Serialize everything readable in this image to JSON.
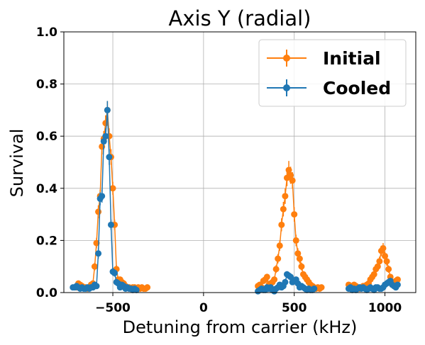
{
  "chart_data": {
    "type": "scatter",
    "title": "Axis Y (radial)",
    "xlabel": "Detuning from carrier (kHz)",
    "ylabel": "Survival",
    "xlim": [
      -770,
      1170
    ],
    "ylim": [
      0,
      1.0
    ],
    "xticks": [
      -500,
      0,
      500,
      1000
    ],
    "xtick_labels": [
      "−500",
      "0",
      "500",
      "1000"
    ],
    "yticks": [
      0,
      0.2,
      0.4,
      0.6,
      0.8,
      1.0
    ],
    "ytick_labels": [
      "0.0",
      "0.2",
      "0.4",
      "0.6",
      "0.8",
      "1.0"
    ],
    "grid": true,
    "legend_position": "top-right",
    "series": [
      {
        "name": "Initial",
        "color": "#ff7f0e",
        "points": [
          [
            -700,
            0.02,
            0.006
          ],
          [
            -690,
            0.035,
            0.008
          ],
          [
            -680,
            0.03,
            0.008
          ],
          [
            -670,
            0.025,
            0.007
          ],
          [
            -660,
            0.02,
            0.006
          ],
          [
            -650,
            0.02,
            0.006
          ],
          [
            -640,
            0.015,
            0.005
          ],
          [
            -630,
            0.02,
            0.006
          ],
          [
            -620,
            0.03,
            0.008
          ],
          [
            -610,
            0.035,
            0.008
          ],
          [
            -600,
            0.1,
            0.015
          ],
          [
            -590,
            0.19,
            0.02
          ],
          [
            -580,
            0.31,
            0.025
          ],
          [
            -570,
            0.37,
            0.025
          ],
          [
            -560,
            0.56,
            0.03
          ],
          [
            -550,
            0.59,
            0.03
          ],
          [
            -540,
            0.65,
            0.03
          ],
          [
            -530,
            0.7,
            0.035
          ],
          [
            -520,
            0.6,
            0.03
          ],
          [
            -510,
            0.52,
            0.03
          ],
          [
            -500,
            0.4,
            0.025
          ],
          [
            -490,
            0.26,
            0.02
          ],
          [
            -480,
            0.09,
            0.015
          ],
          [
            -470,
            0.05,
            0.01
          ],
          [
            -460,
            0.05,
            0.01
          ],
          [
            -450,
            0.04,
            0.008
          ],
          [
            -440,
            0.035,
            0.008
          ],
          [
            -430,
            0.025,
            0.007
          ],
          [
            -420,
            0.02,
            0.006
          ],
          [
            -410,
            0.02,
            0.006
          ],
          [
            -400,
            0.015,
            0.005
          ],
          [
            -390,
            0.02,
            0.006
          ],
          [
            -380,
            0.02,
            0.006
          ],
          [
            -370,
            0.015,
            0.005
          ],
          [
            -360,
            0.02,
            0.006
          ],
          [
            -350,
            0.015,
            0.005
          ],
          [
            -340,
            0.02,
            0.006
          ],
          [
            -330,
            0.015,
            0.005
          ],
          [
            -320,
            0.015,
            0.005
          ],
          [
            -310,
            0.02,
            0.006
          ],
          [
            300,
            0.025,
            0.007
          ],
          [
            310,
            0.03,
            0.008
          ],
          [
            320,
            0.02,
            0.006
          ],
          [
            330,
            0.045,
            0.01
          ],
          [
            340,
            0.05,
            0.01
          ],
          [
            350,
            0.06,
            0.012
          ],
          [
            360,
            0.03,
            0.008
          ],
          [
            370,
            0.035,
            0.008
          ],
          [
            380,
            0.04,
            0.009
          ],
          [
            390,
            0.05,
            0.01
          ],
          [
            400,
            0.09,
            0.015
          ],
          [
            410,
            0.13,
            0.018
          ],
          [
            420,
            0.18,
            0.02
          ],
          [
            430,
            0.26,
            0.025
          ],
          [
            440,
            0.32,
            0.028
          ],
          [
            450,
            0.37,
            0.03
          ],
          [
            460,
            0.44,
            0.032
          ],
          [
            470,
            0.47,
            0.035
          ],
          [
            480,
            0.45,
            0.033
          ],
          [
            490,
            0.43,
            0.032
          ],
          [
            500,
            0.3,
            0.028
          ],
          [
            510,
            0.2,
            0.022
          ],
          [
            520,
            0.15,
            0.02
          ],
          [
            530,
            0.13,
            0.018
          ],
          [
            540,
            0.1,
            0.015
          ],
          [
            550,
            0.07,
            0.012
          ],
          [
            560,
            0.06,
            0.012
          ],
          [
            570,
            0.05,
            0.01
          ],
          [
            580,
            0.04,
            0.009
          ],
          [
            590,
            0.03,
            0.008
          ],
          [
            600,
            0.025,
            0.007
          ],
          [
            610,
            0.02,
            0.006
          ],
          [
            620,
            0.015,
            0.005
          ],
          [
            630,
            0.02,
            0.006
          ],
          [
            640,
            0.015,
            0.005
          ],
          [
            650,
            0.02,
            0.006
          ],
          [
            800,
            0.03,
            0.008
          ],
          [
            810,
            0.02,
            0.006
          ],
          [
            820,
            0.025,
            0.007
          ],
          [
            830,
            0.03,
            0.008
          ],
          [
            840,
            0.025,
            0.007
          ],
          [
            850,
            0.02,
            0.006
          ],
          [
            860,
            0.015,
            0.005
          ],
          [
            870,
            0.02,
            0.006
          ],
          [
            880,
            0.025,
            0.007
          ],
          [
            890,
            0.02,
            0.006
          ],
          [
            900,
            0.03,
            0.008
          ],
          [
            910,
            0.035,
            0.008
          ],
          [
            920,
            0.05,
            0.01
          ],
          [
            930,
            0.06,
            0.012
          ],
          [
            940,
            0.07,
            0.012
          ],
          [
            950,
            0.09,
            0.015
          ],
          [
            960,
            0.1,
            0.015
          ],
          [
            970,
            0.12,
            0.018
          ],
          [
            980,
            0.16,
            0.02
          ],
          [
            990,
            0.17,
            0.02
          ],
          [
            1000,
            0.14,
            0.018
          ],
          [
            1010,
            0.12,
            0.017
          ],
          [
            1020,
            0.09,
            0.014
          ],
          [
            1030,
            0.06,
            0.012
          ],
          [
            1040,
            0.04,
            0.009
          ],
          [
            1050,
            0.03,
            0.008
          ],
          [
            1060,
            0.045,
            0.01
          ],
          [
            1070,
            0.05,
            0.01
          ]
        ]
      },
      {
        "name": "Cooled",
        "color": "#1f77b4",
        "points": [
          [
            -720,
            0.02,
            0.006
          ],
          [
            -710,
            0.02,
            0.006
          ],
          [
            -700,
            0.025,
            0.007
          ],
          [
            -690,
            0.02,
            0.006
          ],
          [
            -680,
            0.015,
            0.005
          ],
          [
            -670,
            0.02,
            0.006
          ],
          [
            -660,
            0.015,
            0.005
          ],
          [
            -650,
            0.015,
            0.005
          ],
          [
            -640,
            0.02,
            0.006
          ],
          [
            -630,
            0.015,
            0.005
          ],
          [
            -620,
            0.02,
            0.006
          ],
          [
            -610,
            0.02,
            0.006
          ],
          [
            -600,
            0.03,
            0.008
          ],
          [
            -590,
            0.025,
            0.007
          ],
          [
            -580,
            0.15,
            0.02
          ],
          [
            -570,
            0.36,
            0.025
          ],
          [
            -560,
            0.37,
            0.025
          ],
          [
            -550,
            0.58,
            0.03
          ],
          [
            -540,
            0.6,
            0.03
          ],
          [
            -530,
            0.7,
            0.035
          ],
          [
            -520,
            0.52,
            0.03
          ],
          [
            -510,
            0.26,
            0.02
          ],
          [
            -500,
            0.08,
            0.015
          ],
          [
            -490,
            0.075,
            0.014
          ],
          [
            -480,
            0.04,
            0.008
          ],
          [
            -470,
            0.035,
            0.008
          ],
          [
            -460,
            0.02,
            0.006
          ],
          [
            -450,
            0.03,
            0.008
          ],
          [
            -440,
            0.025,
            0.007
          ],
          [
            -430,
            0.015,
            0.005
          ],
          [
            -420,
            0.02,
            0.006
          ],
          [
            -410,
            0.015,
            0.005
          ],
          [
            -400,
            0.015,
            0.005
          ],
          [
            -390,
            0.01,
            0.004
          ],
          [
            -380,
            0.015,
            0.005
          ],
          [
            -370,
            0.01,
            0.004
          ],
          [
            300,
            0.005,
            0.003
          ],
          [
            310,
            0.01,
            0.004
          ],
          [
            320,
            0.015,
            0.005
          ],
          [
            330,
            0.01,
            0.004
          ],
          [
            340,
            0.01,
            0.004
          ],
          [
            350,
            0.02,
            0.006
          ],
          [
            360,
            0.015,
            0.005
          ],
          [
            370,
            0.02,
            0.006
          ],
          [
            380,
            0.01,
            0.004
          ],
          [
            390,
            0.005,
            0.003
          ],
          [
            400,
            0.015,
            0.005
          ],
          [
            410,
            0.02,
            0.006
          ],
          [
            420,
            0.03,
            0.008
          ],
          [
            430,
            0.02,
            0.006
          ],
          [
            440,
            0.025,
            0.007
          ],
          [
            450,
            0.04,
            0.009
          ],
          [
            460,
            0.07,
            0.012
          ],
          [
            470,
            0.065,
            0.012
          ],
          [
            480,
            0.06,
            0.012
          ],
          [
            490,
            0.04,
            0.009
          ],
          [
            500,
            0.045,
            0.01
          ],
          [
            510,
            0.05,
            0.01
          ],
          [
            520,
            0.035,
            0.008
          ],
          [
            530,
            0.02,
            0.006
          ],
          [
            540,
            0.025,
            0.007
          ],
          [
            550,
            0.02,
            0.006
          ],
          [
            560,
            0.015,
            0.005
          ],
          [
            570,
            0.01,
            0.004
          ],
          [
            580,
            0.015,
            0.005
          ],
          [
            590,
            0.01,
            0.004
          ],
          [
            600,
            0.01,
            0.004
          ],
          [
            610,
            0.015,
            0.005
          ],
          [
            800,
            0.015,
            0.005
          ],
          [
            810,
            0.02,
            0.006
          ],
          [
            820,
            0.01,
            0.004
          ],
          [
            830,
            0.015,
            0.005
          ],
          [
            840,
            0.01,
            0.004
          ],
          [
            850,
            0.015,
            0.005
          ],
          [
            860,
            0.02,
            0.006
          ],
          [
            870,
            0.015,
            0.005
          ],
          [
            880,
            0.02,
            0.006
          ],
          [
            890,
            0.015,
            0.005
          ],
          [
            900,
            0.01,
            0.004
          ],
          [
            910,
            0.015,
            0.005
          ],
          [
            920,
            0.02,
            0.006
          ],
          [
            930,
            0.015,
            0.005
          ],
          [
            940,
            0.01,
            0.004
          ],
          [
            950,
            0.02,
            0.006
          ],
          [
            960,
            0.02,
            0.006
          ],
          [
            970,
            0.015,
            0.005
          ],
          [
            980,
            0.015,
            0.005
          ],
          [
            990,
            0.02,
            0.006
          ],
          [
            1000,
            0.03,
            0.008
          ],
          [
            1010,
            0.035,
            0.008
          ],
          [
            1020,
            0.04,
            0.009
          ],
          [
            1030,
            0.045,
            0.009
          ],
          [
            1040,
            0.03,
            0.008
          ],
          [
            1050,
            0.025,
            0.007
          ],
          [
            1060,
            0.02,
            0.006
          ],
          [
            1070,
            0.03,
            0.008
          ]
        ]
      }
    ]
  }
}
